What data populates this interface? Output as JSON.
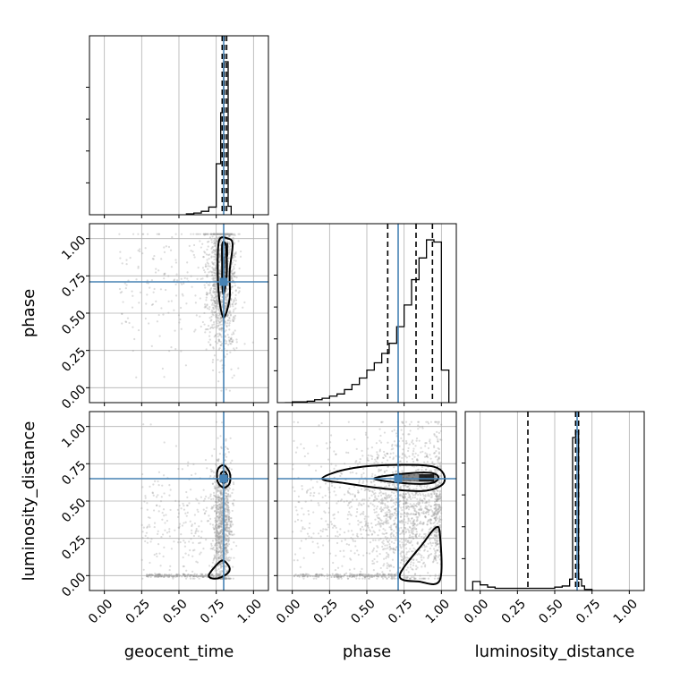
{
  "chart_data": {
    "type": "corner",
    "parameters": [
      "geocent_time",
      "phase",
      "luminosity_distance"
    ],
    "axis_range": [
      -0.1,
      1.1
    ],
    "tick_labels": [
      "0.00",
      "0.25",
      "0.50",
      "0.75",
      "1.00"
    ],
    "tick_values": [
      0.0,
      0.25,
      0.5,
      0.75,
      1.0
    ],
    "grid": true,
    "colors": {
      "truth": "#4682b4",
      "hist": "#000000",
      "scatter": "#9a9a9a",
      "contour": "#000000"
    },
    "truths": {
      "geocent_time": 0.8,
      "phase": 0.71,
      "luminosity_distance": 0.65
    },
    "quantiles": {
      "geocent_time": [
        0.79,
        0.805,
        0.82
      ],
      "phase": [
        0.64,
        0.83,
        0.94
      ],
      "luminosity_distance": [
        0.32,
        0.64,
        0.66
      ]
    },
    "histograms": {
      "geocent_time": {
        "bin_edges": [
          0.55,
          0.6,
          0.65,
          0.7,
          0.75,
          0.78,
          0.8,
          0.83,
          0.85
        ],
        "counts": [
          1,
          2,
          4,
          9,
          60,
          120,
          180,
          10
        ],
        "ymax": 200
      },
      "phase": {
        "bin_edges": [
          -0.05,
          0.0,
          0.05,
          0.1,
          0.15,
          0.2,
          0.25,
          0.3,
          0.35,
          0.4,
          0.45,
          0.5,
          0.55,
          0.6,
          0.65,
          0.7,
          0.75,
          0.8,
          0.85,
          0.9,
          0.95,
          1.0,
          1.05
        ],
        "counts": [
          0,
          1,
          1,
          2,
          4,
          6,
          9,
          12,
          18,
          25,
          34,
          45,
          55,
          68,
          82,
          105,
          135,
          170,
          200,
          225,
          222,
          45
        ],
        "ymax": 235
      },
      "luminosity_distance": {
        "bin_edges": [
          -0.05,
          0.0,
          0.05,
          0.1,
          0.15,
          0.2,
          0.25,
          0.3,
          0.35,
          0.4,
          0.45,
          0.5,
          0.55,
          0.6,
          0.62,
          0.64,
          0.66,
          0.68,
          0.7,
          0.75
        ],
        "counts": [
          8,
          5,
          3,
          2,
          2,
          2,
          2,
          2,
          2,
          2,
          2,
          3,
          4,
          10,
          135,
          140,
          10,
          4,
          1
        ],
        "ymax": 150
      }
    },
    "contours_2d": [
      {
        "x": "geocent_time",
        "y": "phase",
        "levels": [
          [
            [
              0.8,
              0.47
            ],
            [
              0.84,
              0.6
            ],
            [
              0.84,
              0.78
            ],
            [
              0.86,
              0.96
            ],
            [
              0.83,
              1.0
            ],
            [
              0.77,
              0.99
            ],
            [
              0.76,
              0.8
            ],
            [
              0.77,
              0.6
            ]
          ],
          [
            [
              0.8,
              0.63
            ],
            [
              0.82,
              0.75
            ],
            [
              0.82,
              0.9
            ],
            [
              0.81,
              0.97
            ],
            [
              0.79,
              0.96
            ],
            [
              0.79,
              0.8
            ],
            [
              0.79,
              0.7
            ]
          ]
        ]
      },
      {
        "x": "geocent_time",
        "y": "luminosity_distance",
        "levels": [
          [
            [
              0.8,
              0.59
            ],
            [
              0.84,
              0.62
            ],
            [
              0.84,
              0.69
            ],
            [
              0.8,
              0.74
            ],
            [
              0.76,
              0.71
            ],
            [
              0.76,
              0.63
            ]
          ],
          [
            [
              0.8,
              0.62
            ],
            [
              0.82,
              0.64
            ],
            [
              0.82,
              0.68
            ],
            [
              0.8,
              0.7
            ],
            [
              0.78,
              0.68
            ],
            [
              0.78,
              0.64
            ]
          ],
          [
            [
              0.7,
              0.0
            ],
            [
              0.76,
              0.08
            ],
            [
              0.8,
              0.1
            ],
            [
              0.84,
              0.05
            ],
            [
              0.82,
              0.01
            ],
            [
              0.75,
              -0.02
            ]
          ]
        ]
      },
      {
        "x": "phase",
        "y": "luminosity_distance",
        "levels": [
          [
            [
              0.2,
              0.65
            ],
            [
              0.35,
              0.62
            ],
            [
              0.65,
              0.58
            ],
            [
              0.9,
              0.57
            ],
            [
              1.02,
              0.63
            ],
            [
              0.95,
              0.73
            ],
            [
              0.6,
              0.74
            ],
            [
              0.35,
              0.71
            ]
          ],
          [
            [
              0.55,
              0.65
            ],
            [
              0.75,
              0.62
            ],
            [
              0.93,
              0.62
            ],
            [
              0.98,
              0.66
            ],
            [
              0.92,
              0.69
            ],
            [
              0.72,
              0.68
            ]
          ],
          [
            [
              0.72,
              0.0
            ],
            [
              0.88,
              0.22
            ],
            [
              0.96,
              0.32
            ],
            [
              0.99,
              0.28
            ],
            [
              0.99,
              -0.03
            ],
            [
              0.85,
              -0.04
            ]
          ]
        ]
      }
    ],
    "scatter_2d": [
      {
        "x": "geocent_time",
        "y": "phase",
        "center": [
          0.79,
          0.7
        ],
        "spread": [
          0.05,
          0.25
        ],
        "tail_x_min": 0.1,
        "n": 1200,
        "seed": 11
      },
      {
        "x": "geocent_time",
        "y": "luminosity_distance",
        "center": [
          0.79,
          0.35
        ],
        "spread": [
          0.03,
          0.22
        ],
        "tail_x_min": 0.25,
        "n": 1200,
        "seed": 23
      },
      {
        "x": "phase",
        "y": "luminosity_distance",
        "center": [
          0.8,
          0.45
        ],
        "spread": [
          0.2,
          0.25
        ],
        "tail_x_min": 0.0,
        "n": 1800,
        "seed": 37
      }
    ],
    "density_blocks_2d": [
      {
        "x": "geocent_time",
        "y": "phase",
        "rects": [
          [
            0.81,
            0.83,
            0.88,
            0.97,
            1.0
          ],
          [
            0.79,
            0.82,
            0.8,
            0.88,
            0.55
          ],
          [
            0.79,
            0.82,
            0.72,
            0.8,
            0.35
          ]
        ]
      },
      {
        "x": "geocent_time",
        "y": "luminosity_distance",
        "rects": [
          [
            0.79,
            0.83,
            0.63,
            0.68,
            1.0
          ]
        ]
      },
      {
        "x": "phase",
        "y": "luminosity_distance",
        "rects": [
          [
            0.72,
            0.96,
            0.63,
            0.68,
            0.55
          ],
          [
            0.85,
            0.95,
            0.63,
            0.68,
            0.9
          ]
        ]
      }
    ]
  }
}
